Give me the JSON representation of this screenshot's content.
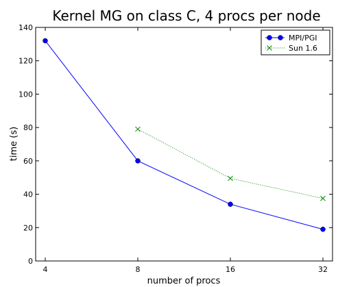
{
  "chart_data": {
    "type": "line",
    "title": "Kernel MG on class C, 4 procs per node",
    "xlabel": "number of procs",
    "ylabel": "time (s)",
    "x_scale": "log2",
    "x": [
      4,
      8,
      16,
      32
    ],
    "x_ticks": [
      "4",
      "8",
      "16",
      "32"
    ],
    "y_ticks": [
      "0",
      "20",
      "40",
      "60",
      "80",
      "100",
      "120",
      "140"
    ],
    "ylim": [
      0,
      140
    ],
    "grid": false,
    "legend_position": "top-right",
    "series": [
      {
        "name": "MPI/PGI",
        "x": [
          4,
          8,
          16,
          32
        ],
        "values": [
          132,
          60,
          34,
          19
        ],
        "color": "#0000ff",
        "line_style": "solid",
        "marker": "circle"
      },
      {
        "name": "Sun 1.6",
        "x": [
          8,
          16,
          32
        ],
        "values": [
          79,
          49.5,
          37.5
        ],
        "color": "#008000",
        "line_style": "dotted",
        "marker": "x"
      }
    ]
  }
}
